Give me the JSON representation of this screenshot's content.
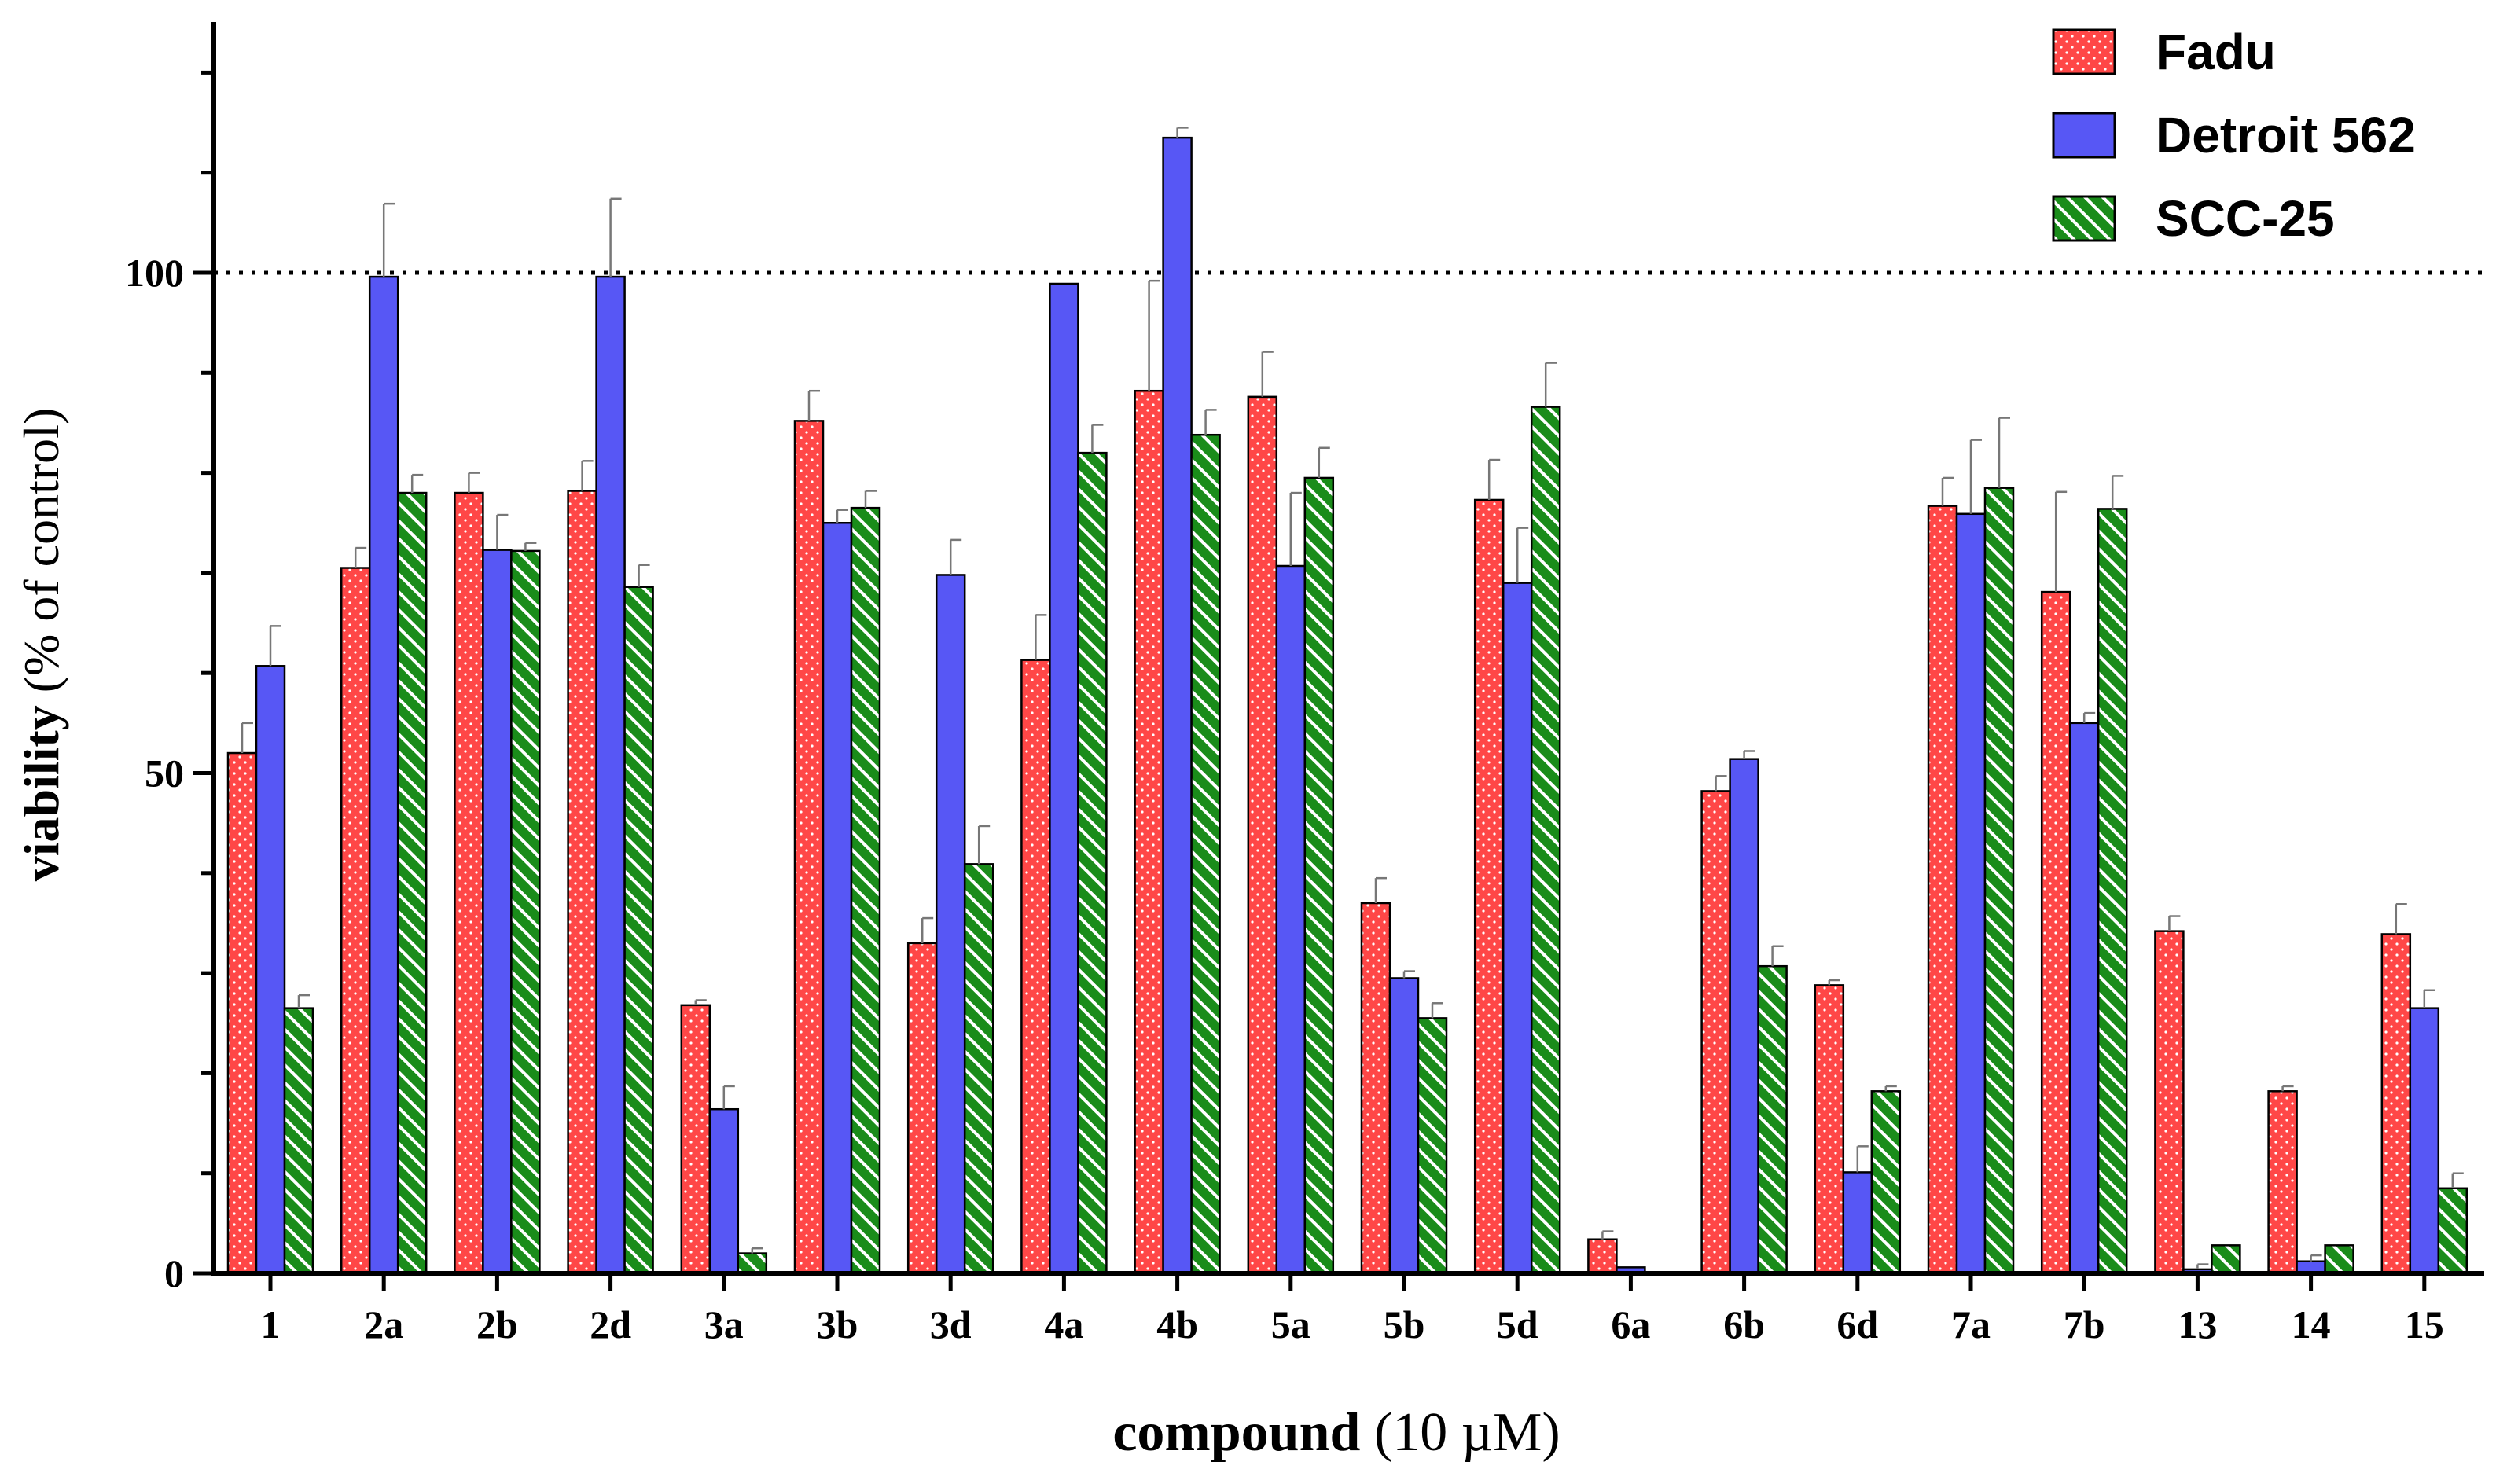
{
  "chart_data": {
    "type": "bar",
    "title": "",
    "xlabel_bold": "compound",
    "xlabel_rest": " (10 µM)",
    "ylabel_bold": "viability",
    "ylabel_rest": " (% of control)",
    "ylim": [
      0,
      125
    ],
    "yticks": [
      0,
      50,
      100
    ],
    "ytick_labels": [
      "0",
      "50",
      "100"
    ],
    "reference_line": 100,
    "legend_position": "top-right",
    "categories": [
      "1",
      "2a",
      "2b",
      "2d",
      "3a",
      "3b",
      "3d",
      "4a",
      "4b",
      "5a",
      "5b",
      "5d",
      "6a",
      "6b",
      "6d",
      "7a",
      "7b",
      "13",
      "14",
      "15"
    ],
    "series": [
      {
        "name": "Fadu",
        "color": "#ff4747",
        "pattern": "dots",
        "values": [
          52,
          70.5,
          78,
          78.2,
          26.8,
          85.2,
          33,
          61.3,
          88.2,
          87.6,
          37,
          77.3,
          3.4,
          48.2,
          28.8,
          76.7,
          68.1,
          34.2,
          18.2,
          33.9
        ],
        "errors": [
          3,
          2,
          2,
          3,
          0.5,
          3,
          2.5,
          4.5,
          11,
          4.5,
          2.5,
          4,
          0.8,
          1.5,
          0.5,
          2.8,
          10,
          1.5,
          0.5,
          3
        ]
      },
      {
        "name": "Detroit 562",
        "color": "#5757f5",
        "pattern": "solid",
        "values": [
          60.7,
          99.6,
          72.3,
          99.6,
          16.4,
          75,
          69.8,
          98.9,
          113.5,
          70.7,
          29.5,
          69,
          0.6,
          51.4,
          10.1,
          75.9,
          55,
          0.4,
          1.2,
          26.5
        ]
      },
      {
        "name": "SCC-25",
        "color": "#1a8c1a",
        "pattern": "hatch",
        "values": [
          26.5,
          78,
          72.2,
          68.6,
          2,
          76.5,
          40.9,
          82,
          83.8,
          79.5,
          25.5,
          86.6,
          0,
          30.7,
          18.2,
          78.5,
          76.4,
          2.8,
          2.8,
          8.5
        ]
      }
    ],
    "errors_detroit": [
      4,
      7.3,
      3.5,
      7.8,
      2.3,
      1.3,
      3.5,
      0,
      1,
      7.3,
      0.7,
      5.5,
      0,
      0.8,
      2.6,
      7.4,
      1,
      0.5,
      0.6,
      1.8
    ],
    "errors_scc": [
      1.3,
      1.8,
      0.8,
      2.2,
      0.5,
      1.7,
      3.8,
      2.8,
      2.5,
      3,
      1.5,
      4.4,
      0,
      2,
      0.5,
      7,
      3.3,
      0,
      0,
      1.5
    ]
  }
}
